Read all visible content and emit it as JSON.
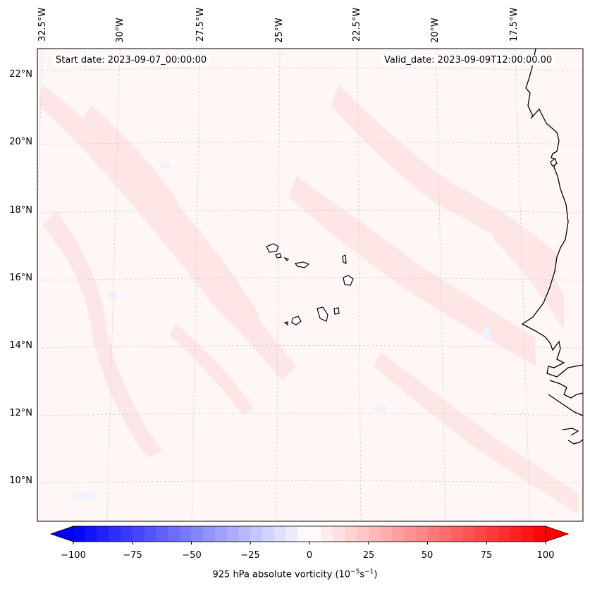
{
  "map": {
    "region": "Cape Verde Islands and West African coast",
    "start_date": "Start date: 2023-09-07_00:00:00",
    "valid_date": "Valid_date: 2023-09-09T12:00:00.00",
    "lat_labels": [
      "22°N",
      "20°N",
      "18°N",
      "16°N",
      "14°N",
      "12°N",
      "10°N"
    ],
    "lon_labels": [
      "32.5°W",
      "30°W",
      "27.5°W",
      "25°W",
      "22.5°W",
      "20°W",
      "17.5°W"
    ],
    "colors": {
      "positive": "#ff0000",
      "negative": "#0000ff",
      "background": "#fff7f7",
      "coast": "#000000"
    }
  },
  "colorbar": {
    "ticks": [
      "−100",
      "−75",
      "−50",
      "−25",
      "0",
      "25",
      "50",
      "75",
      "100"
    ],
    "min": -100,
    "max": 100,
    "step": 5,
    "label_prefix": "925 hPa absolute vorticity (10",
    "label_exp1": "−5",
    "label_mid": "s",
    "label_exp2": "−1",
    "label_suffix": ")"
  }
}
